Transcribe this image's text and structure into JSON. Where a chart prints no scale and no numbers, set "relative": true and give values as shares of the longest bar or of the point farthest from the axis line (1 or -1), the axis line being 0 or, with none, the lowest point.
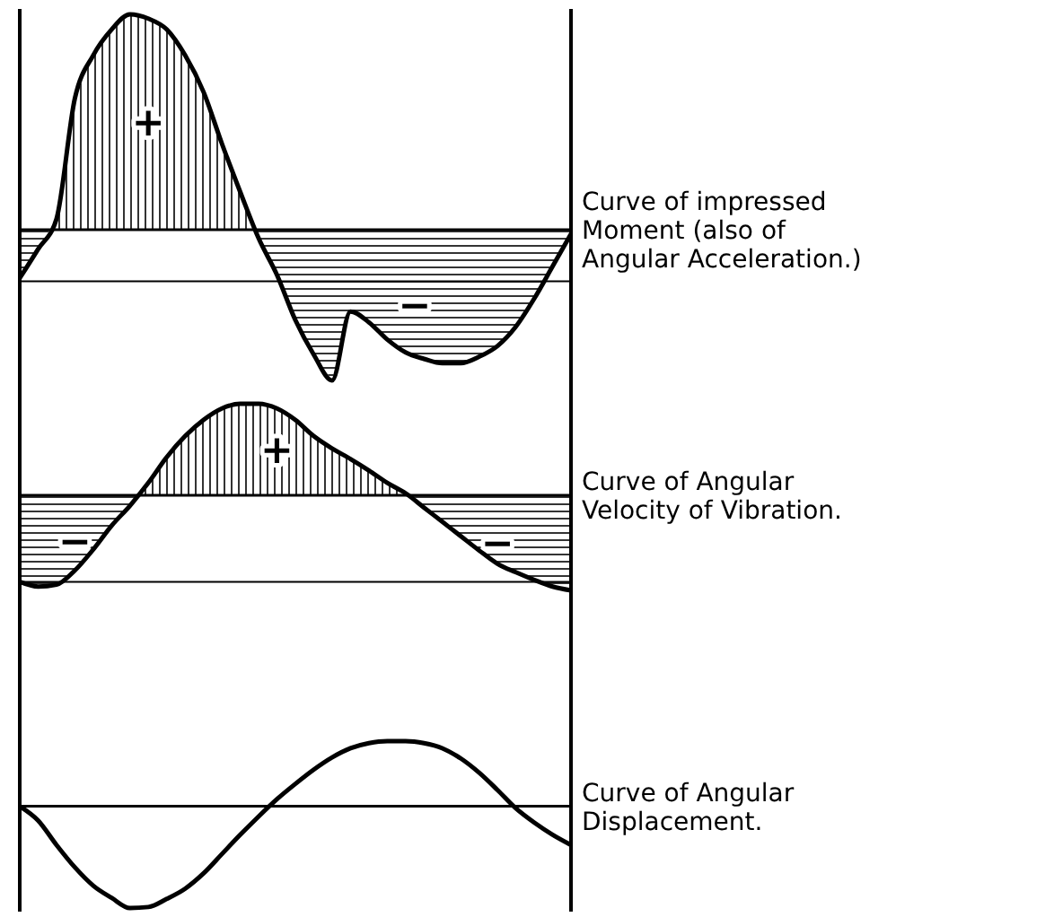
{
  "chart_data": [
    {
      "type": "area",
      "title": "Curve of impressed Moment (also of Angular Acceleration.)",
      "relative": true,
      "color": "#000000",
      "categories": [
        null,
        null,
        null,
        null,
        null,
        null,
        null,
        null,
        null,
        null,
        null,
        null,
        null,
        null,
        null,
        null,
        null,
        null,
        null,
        null,
        null,
        null,
        null,
        null,
        null,
        null,
        null,
        null,
        null,
        null,
        null
      ],
      "values": [
        -0.225,
        -0.09,
        0.05,
        0.61,
        0.81,
        0.93,
        1.0,
        0.98,
        0.93,
        0.81,
        0.64,
        0.4,
        0.175,
        -0.04,
        -0.21,
        -0.42,
        -0.58,
        -0.7,
        -0.38,
        -0.43,
        -0.51,
        -0.57,
        -0.6,
        -0.62,
        -0.62,
        -0.59,
        -0.54,
        -0.45,
        -0.32,
        -0.17,
        -0.02
      ],
      "ref_lines": [
        {
          "axis": "y",
          "value": -0.24
        }
      ],
      "annotations": [
        "+",
        "−"
      ]
    },
    {
      "type": "area",
      "title": "Curve of Angular Velocity of Vibration.",
      "relative": true,
      "color": "#000000",
      "categories": [
        null,
        null,
        null,
        null,
        null,
        null,
        null,
        null,
        null,
        null,
        null,
        null,
        null,
        null,
        null,
        null,
        null,
        null,
        null,
        null,
        null,
        null,
        null,
        null,
        null,
        null,
        null,
        null,
        null,
        null,
        null
      ],
      "values": [
        -0.91,
        -0.96,
        -0.94,
        -0.79,
        -0.57,
        -0.32,
        -0.11,
        0.13,
        0.4,
        0.62,
        0.79,
        0.91,
        0.96,
        0.96,
        0.91,
        0.79,
        0.62,
        0.49,
        0.38,
        0.26,
        0.13,
        0.02,
        -0.13,
        -0.28,
        -0.43,
        -0.58,
        -0.72,
        -0.81,
        -0.89,
        -0.96,
        -1.0
      ],
      "ref_lines": [
        {
          "axis": "y",
          "value": -0.91
        }
      ],
      "annotations": [
        "−",
        "+",
        "−"
      ]
    },
    {
      "type": "line",
      "title": "Curve of Angular Displacement.",
      "relative": true,
      "color": "#000000",
      "categories": [
        null,
        null,
        null,
        null,
        null,
        null,
        null,
        null,
        null,
        null,
        null,
        null,
        null,
        null,
        null,
        null,
        null,
        null,
        null,
        null,
        null,
        null,
        null,
        null,
        null,
        null,
        null,
        null,
        null,
        null,
        null
      ],
      "values": [
        0,
        -0.14,
        -0.38,
        -0.6,
        -0.78,
        -0.9,
        -1.0,
        -0.99,
        -0.91,
        -0.81,
        -0.66,
        -0.47,
        -0.28,
        -0.1,
        0.07,
        0.22,
        0.36,
        0.48,
        0.57,
        0.62,
        0.64,
        0.64,
        0.62,
        0.57,
        0.47,
        0.33,
        0.16,
        -0.02,
        -0.16,
        -0.28,
        -0.38
      ]
    }
  ]
}
